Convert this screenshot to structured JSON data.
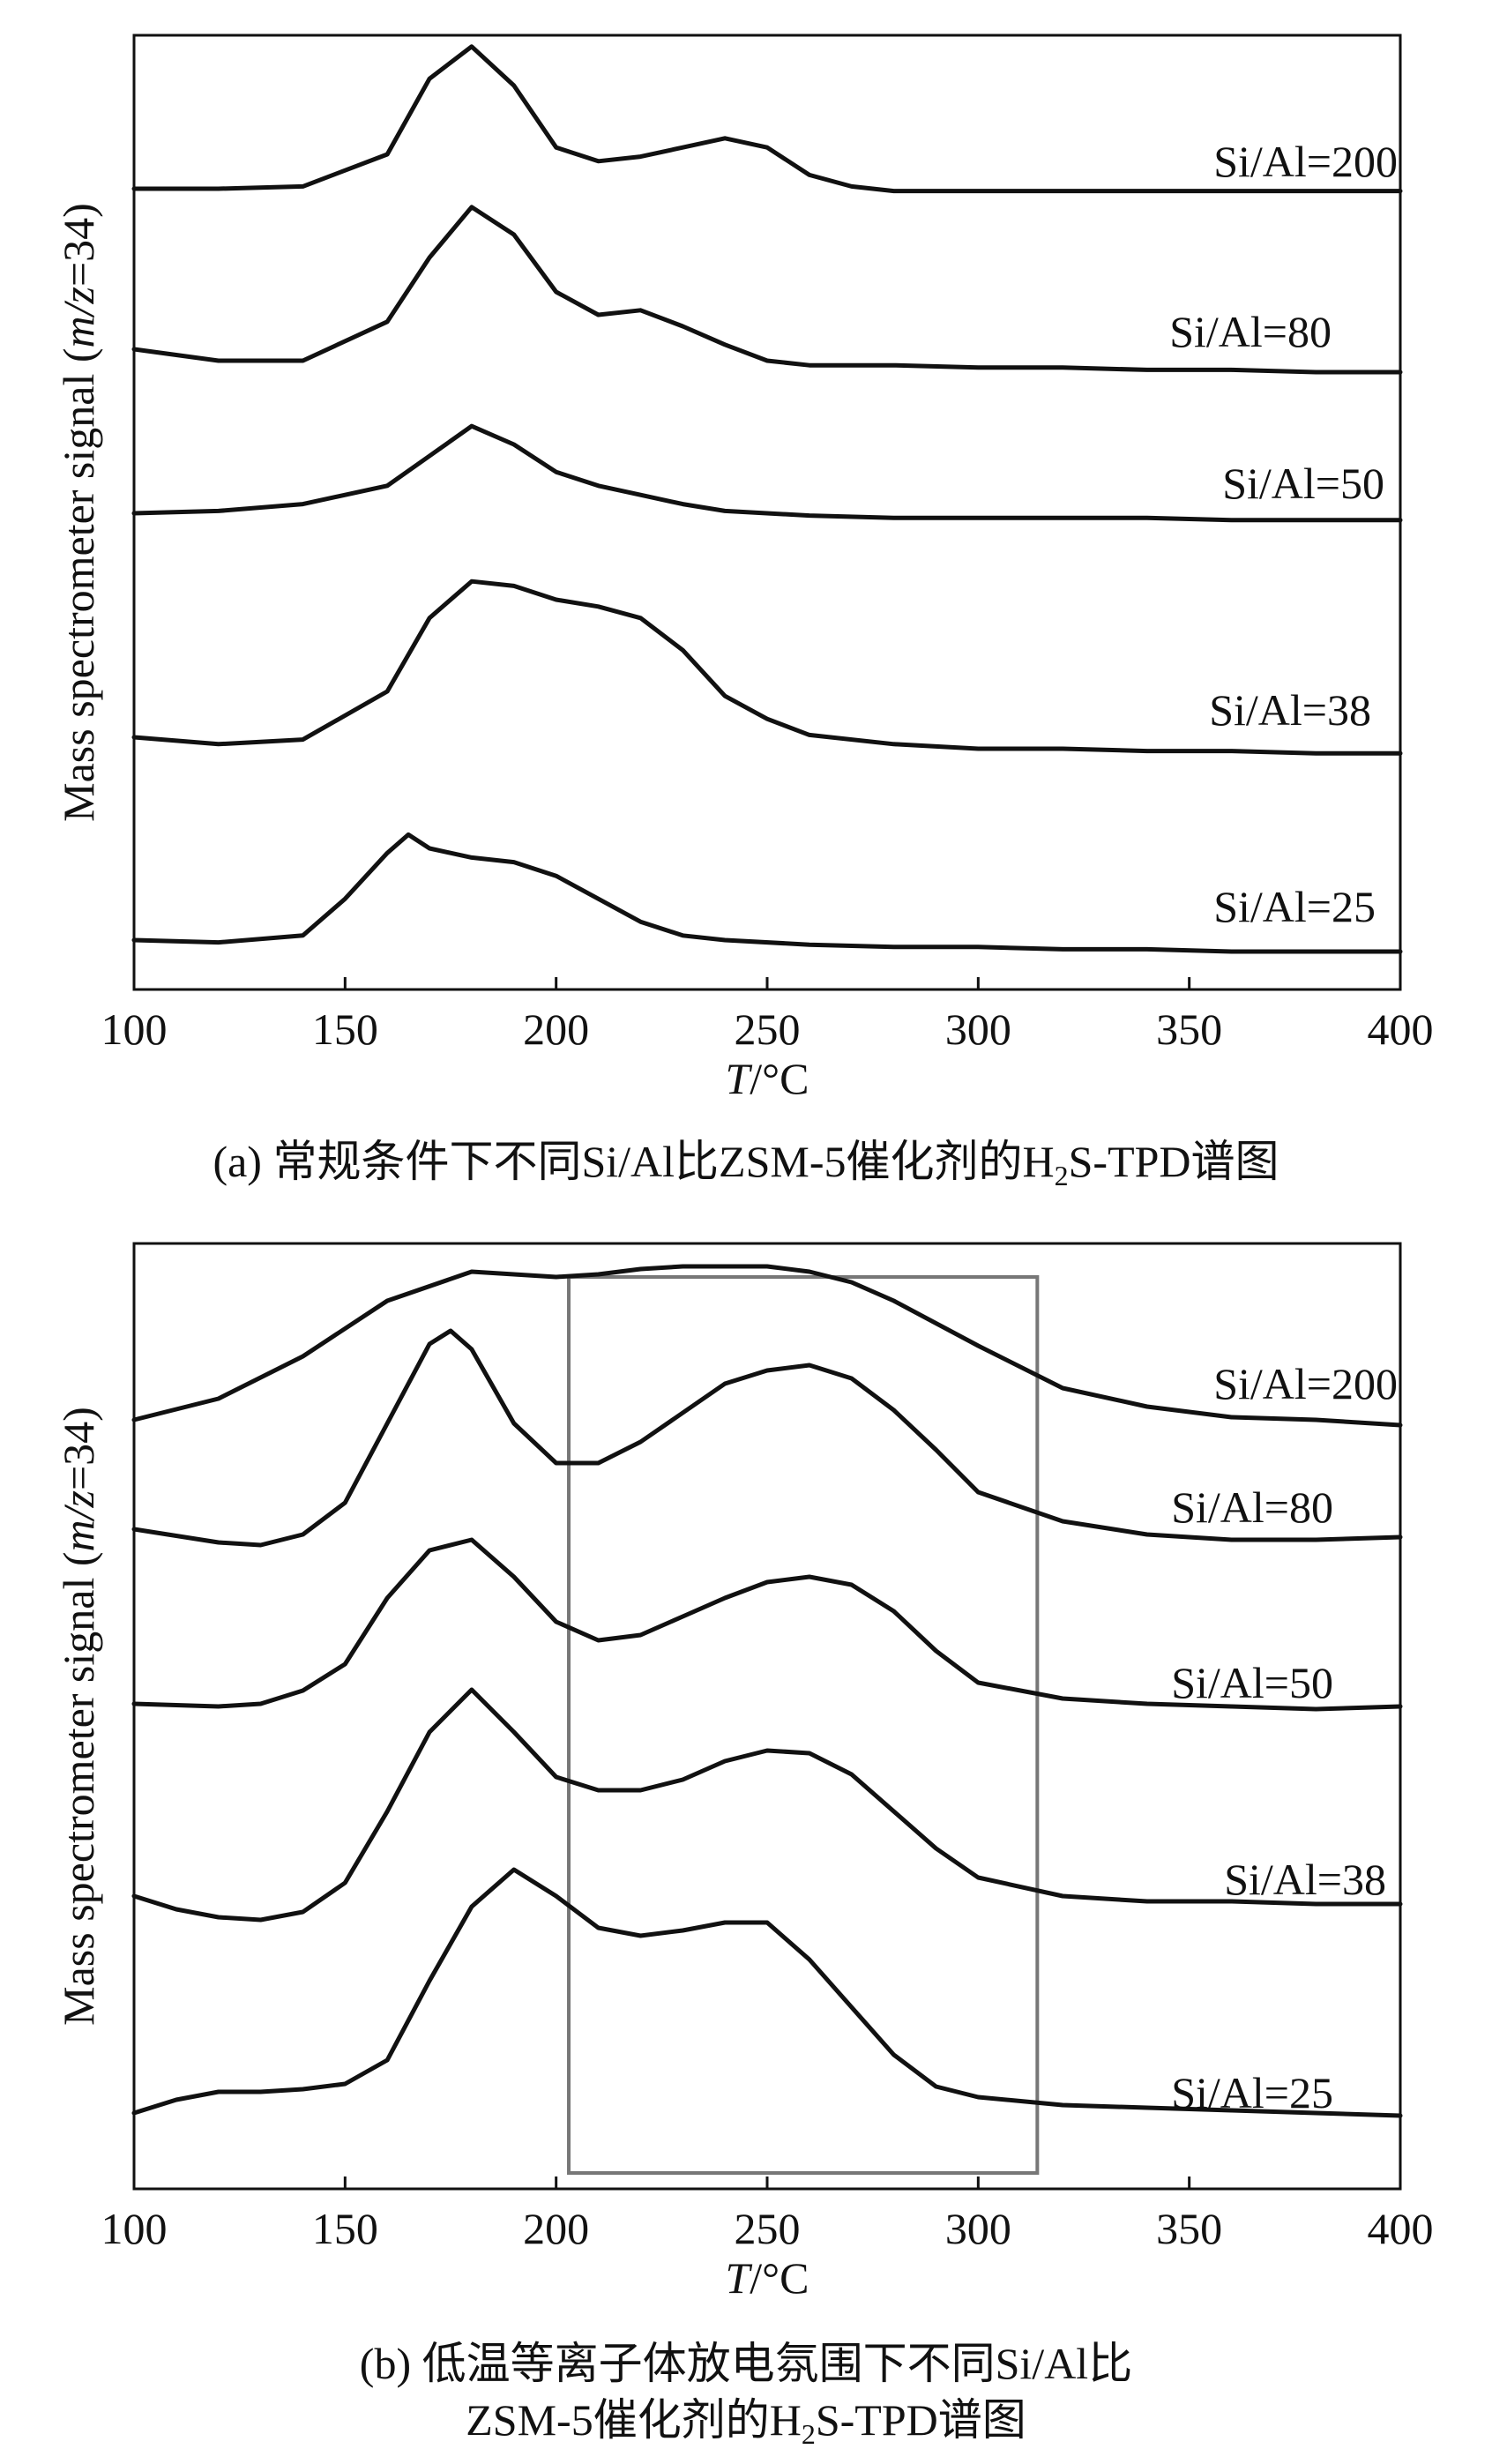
{
  "chart_data": [
    {
      "panel": "a",
      "type": "line",
      "ylabel": "Mass spectrometer signal (m/z=34)",
      "xlabel": "T/°C",
      "xlim": [
        100,
        400
      ],
      "xticks": [
        100,
        150,
        200,
        250,
        300,
        350,
        400
      ],
      "grid": false,
      "caption": {
        "prefix": "(a) 常规条件下不同Si/Al比ZSM-5催化剂的H",
        "sub": "2",
        "suffix": "S-TPD谱图"
      },
      "series": [
        {
          "name": "Si/Al=200",
          "x": [
            100,
            120,
            140,
            160,
            170,
            180,
            190,
            200,
            210,
            220,
            230,
            240,
            250,
            260,
            270,
            280,
            300,
            320,
            340,
            360,
            380,
            400
          ],
          "y": [
            0.0,
            0.0,
            0.01,
            0.15,
            0.48,
            0.62,
            0.45,
            0.18,
            0.12,
            0.14,
            0.18,
            0.22,
            0.18,
            0.06,
            0.01,
            -0.01,
            -0.01,
            -0.01,
            -0.01,
            -0.01,
            -0.01,
            -0.01
          ]
        },
        {
          "name": "Si/Al=80",
          "x": [
            100,
            120,
            140,
            160,
            170,
            180,
            190,
            200,
            210,
            220,
            230,
            240,
            250,
            260,
            280,
            300,
            320,
            340,
            360,
            380,
            400
          ],
          "y": [
            0.0,
            -0.05,
            -0.05,
            0.12,
            0.4,
            0.62,
            0.5,
            0.25,
            0.15,
            0.17,
            0.1,
            0.02,
            -0.05,
            -0.07,
            -0.07,
            -0.08,
            -0.08,
            -0.09,
            -0.09,
            -0.1,
            -0.1
          ]
        },
        {
          "name": "Si/Al=50",
          "x": [
            100,
            120,
            140,
            160,
            170,
            180,
            190,
            200,
            210,
            220,
            230,
            240,
            260,
            280,
            300,
            320,
            340,
            360,
            380,
            400
          ],
          "y": [
            0.0,
            0.01,
            0.04,
            0.12,
            0.25,
            0.38,
            0.3,
            0.18,
            0.12,
            0.08,
            0.04,
            0.01,
            -0.01,
            -0.02,
            -0.02,
            -0.02,
            -0.02,
            -0.03,
            -0.03,
            -0.03
          ]
        },
        {
          "name": "Si/Al=38",
          "x": [
            100,
            120,
            140,
            160,
            170,
            180,
            190,
            200,
            210,
            220,
            230,
            240,
            250,
            260,
            280,
            300,
            320,
            340,
            360,
            380,
            400
          ],
          "y": [
            0.0,
            -0.03,
            -0.01,
            0.2,
            0.52,
            0.68,
            0.66,
            0.6,
            0.57,
            0.52,
            0.38,
            0.18,
            0.08,
            0.01,
            -0.03,
            -0.05,
            -0.05,
            -0.06,
            -0.06,
            -0.07,
            -0.07
          ]
        },
        {
          "name": "Si/Al=25",
          "x": [
            100,
            120,
            140,
            150,
            160,
            165,
            170,
            180,
            190,
            200,
            210,
            220,
            230,
            240,
            260,
            280,
            300,
            320,
            340,
            360,
            380,
            400
          ],
          "y": [
            0.0,
            -0.01,
            0.02,
            0.18,
            0.38,
            0.46,
            0.4,
            0.36,
            0.34,
            0.28,
            0.18,
            0.08,
            0.02,
            0.0,
            -0.02,
            -0.03,
            -0.03,
            -0.04,
            -0.04,
            -0.05,
            -0.05,
            -0.05
          ]
        }
      ]
    },
    {
      "panel": "b",
      "type": "line",
      "ylabel": "Mass spectrometer signal (m/z=34)",
      "xlabel": "T/°C",
      "xlim": [
        100,
        400
      ],
      "xticks": [
        100,
        150,
        200,
        250,
        300,
        350,
        400
      ],
      "grid": false,
      "highlight_box_x": [
        203,
        314
      ],
      "caption": {
        "line1": "(b) 低温等离子体放电氛围下不同Si/Al比",
        "line2_prefix": "ZSM-5催化剂的H",
        "sub": "2",
        "line2_suffix": "S-TPD谱图"
      },
      "series": [
        {
          "name": "Si/Al=200",
          "x": [
            100,
            120,
            140,
            160,
            180,
            200,
            210,
            220,
            230,
            240,
            250,
            260,
            270,
            280,
            300,
            320,
            340,
            360,
            380,
            400
          ],
          "y": [
            0.0,
            0.08,
            0.24,
            0.45,
            0.56,
            0.54,
            0.55,
            0.57,
            0.58,
            0.58,
            0.58,
            0.56,
            0.52,
            0.45,
            0.28,
            0.12,
            0.05,
            0.01,
            0.0,
            -0.02
          ]
        },
        {
          "name": "Si/Al=80",
          "x": [
            100,
            120,
            130,
            140,
            150,
            160,
            170,
            175,
            180,
            190,
            200,
            210,
            220,
            230,
            240,
            250,
            260,
            270,
            280,
            290,
            300,
            320,
            340,
            360,
            380,
            400
          ],
          "y": [
            0.0,
            -0.05,
            -0.06,
            -0.02,
            0.1,
            0.4,
            0.7,
            0.75,
            0.68,
            0.4,
            0.25,
            0.25,
            0.33,
            0.44,
            0.55,
            0.6,
            0.62,
            0.57,
            0.45,
            0.3,
            0.14,
            0.03,
            -0.02,
            -0.04,
            -0.04,
            -0.03
          ]
        },
        {
          "name": "Si/Al=50",
          "x": [
            100,
            120,
            130,
            140,
            150,
            160,
            170,
            180,
            190,
            200,
            210,
            220,
            230,
            240,
            250,
            260,
            270,
            280,
            290,
            300,
            320,
            340,
            360,
            380,
            400
          ],
          "y": [
            0.0,
            -0.01,
            0.0,
            0.05,
            0.15,
            0.4,
            0.58,
            0.62,
            0.48,
            0.31,
            0.24,
            0.26,
            0.33,
            0.4,
            0.46,
            0.48,
            0.45,
            0.35,
            0.2,
            0.08,
            0.02,
            0.0,
            -0.01,
            -0.02,
            -0.01
          ]
        },
        {
          "name": "Si/Al=38",
          "x": [
            100,
            110,
            120,
            130,
            140,
            150,
            160,
            170,
            180,
            190,
            200,
            210,
            220,
            230,
            240,
            250,
            260,
            270,
            280,
            290,
            300,
            320,
            340,
            360,
            380,
            400
          ],
          "y": [
            0.0,
            -0.05,
            -0.08,
            -0.09,
            -0.06,
            0.05,
            0.32,
            0.62,
            0.78,
            0.62,
            0.45,
            0.4,
            0.4,
            0.44,
            0.51,
            0.55,
            0.54,
            0.46,
            0.32,
            0.18,
            0.07,
            0.0,
            -0.02,
            -0.02,
            -0.03,
            -0.03
          ]
        },
        {
          "name": "Si/Al=25",
          "x": [
            100,
            110,
            120,
            130,
            140,
            150,
            160,
            170,
            180,
            190,
            200,
            210,
            220,
            230,
            240,
            250,
            260,
            270,
            280,
            290,
            300,
            320,
            340,
            360,
            380,
            400
          ],
          "y": [
            0.0,
            0.05,
            0.08,
            0.08,
            0.09,
            0.11,
            0.2,
            0.5,
            0.78,
            0.92,
            0.82,
            0.7,
            0.67,
            0.69,
            0.72,
            0.72,
            0.58,
            0.4,
            0.22,
            0.1,
            0.06,
            0.03,
            0.02,
            0.01,
            0.0,
            -0.01
          ]
        }
      ]
    }
  ]
}
